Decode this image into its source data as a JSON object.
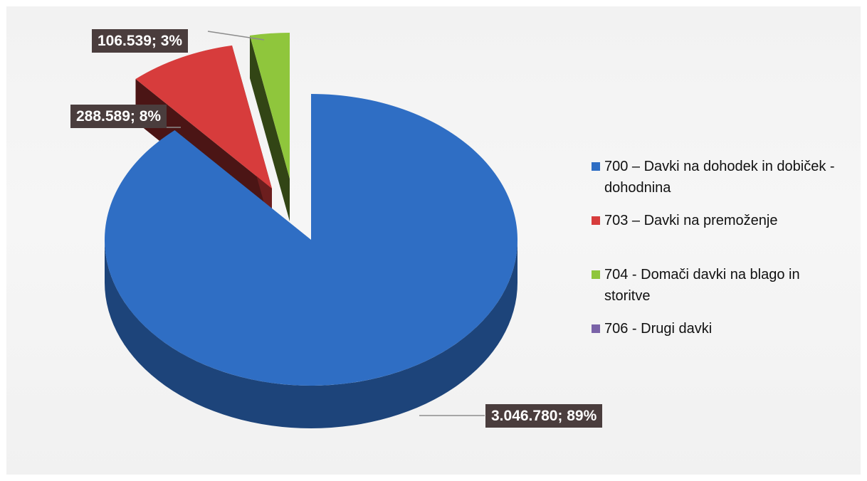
{
  "chart_data": {
    "type": "pie",
    "style": "3d-exploded",
    "slices": [
      {
        "name": "700 – Davki na dohodek in dobiček - dohodnina",
        "value": 3046780,
        "percent": 89,
        "color": "#2f6ec4",
        "label": "3.046.780; 89%"
      },
      {
        "name": "703 – Davki na premoženje",
        "value": 288589,
        "percent": 8,
        "color": "#d73c3c",
        "label": "288.589; 8%"
      },
      {
        "name": "704 - Domači davki na blago in storitve",
        "value": 106539,
        "percent": 3,
        "color": "#8fc63c",
        "label": "106.539; 3%"
      },
      {
        "name": "706 - Drugi davki",
        "value": 0,
        "percent": 0,
        "color": "#7a63a8",
        "label": ""
      }
    ],
    "legend_position": "right"
  },
  "legend": [
    {
      "text": "700 – Davki na dohodek in dobiček - dohodnina",
      "color": "#2f6ec4"
    },
    {
      "text": "703 – Davki na premoženje",
      "color": "#d73c3c"
    },
    {
      "text": "704 - Domači davki na blago in storitve",
      "color": "#8fc63c"
    },
    {
      "text": "706 - Drugi davki",
      "color": "#7a63a8"
    }
  ]
}
